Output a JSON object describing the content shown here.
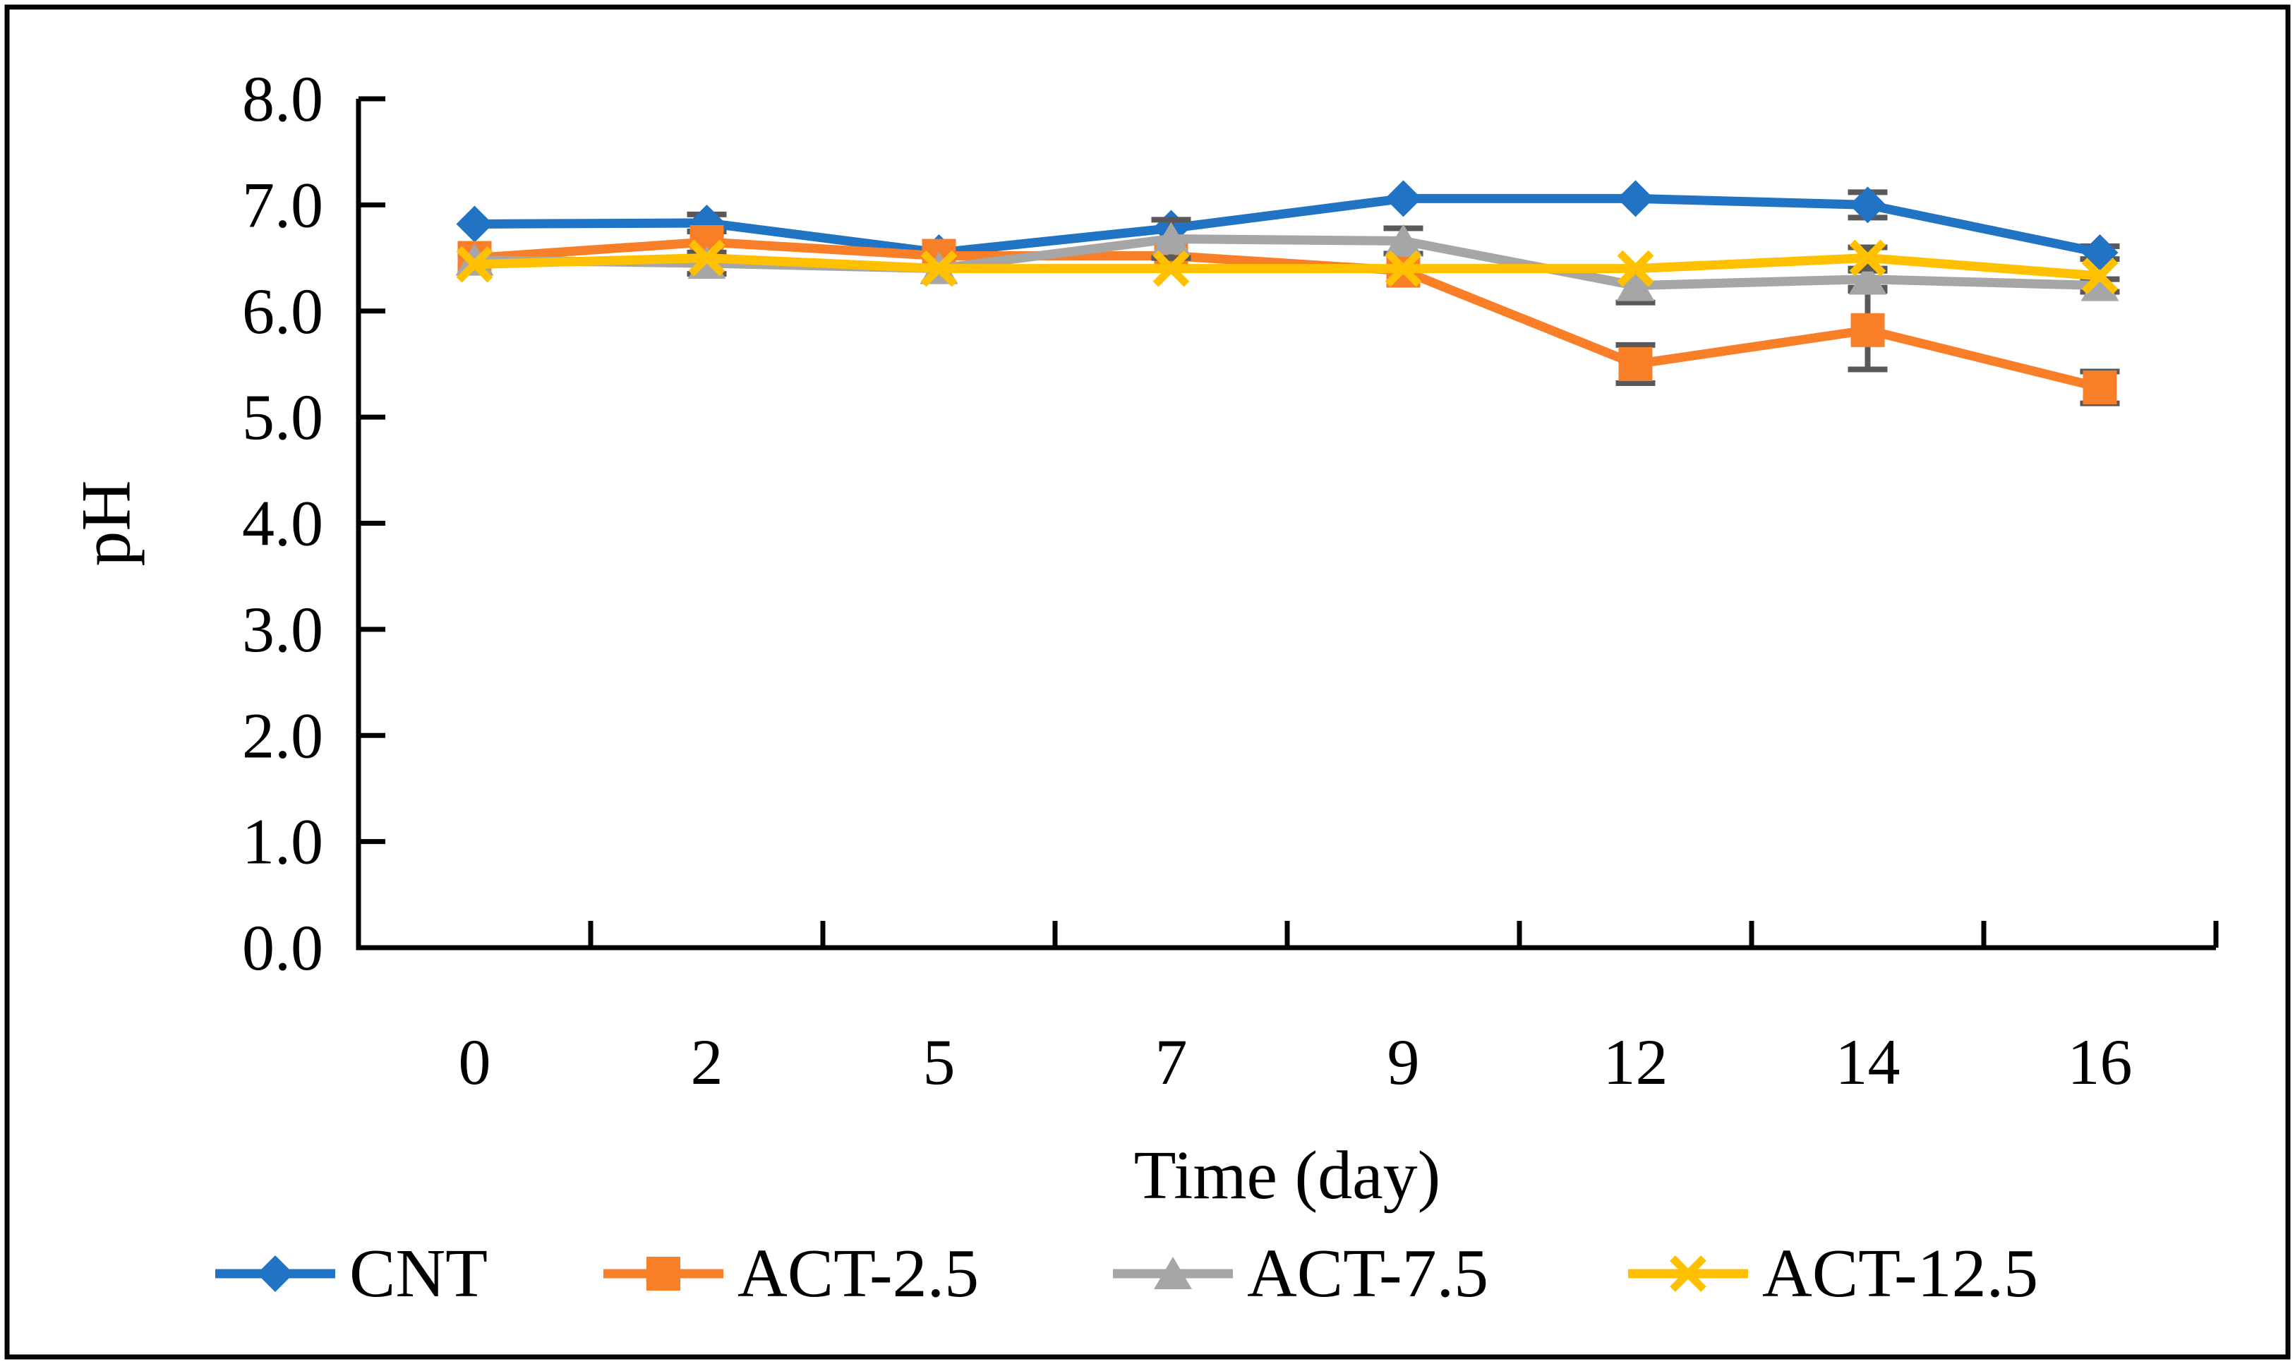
{
  "figure": {
    "background": "#FFFFFF",
    "border_color": "#000000",
    "error_bar_color": "#595959",
    "axis_color": "#000000"
  },
  "chart_data": {
    "type": "line",
    "title": "",
    "xlabel": "Time (day)",
    "ylabel": "pH",
    "categories": [
      "0",
      "2",
      "5",
      "7",
      "9",
      "12",
      "14",
      "16"
    ],
    "x_tick_labels": [
      "0",
      "2",
      "5",
      "7",
      "9",
      "12",
      "14",
      "16"
    ],
    "y_tick_labels": [
      "0.0",
      "1.0",
      "2.0",
      "3.0",
      "4.0",
      "5.0",
      "6.0",
      "7.0",
      "8.0"
    ],
    "ylim": [
      0.0,
      8.0
    ],
    "y_tick_step": 1.0,
    "grid": false,
    "legend_position": "bottom",
    "series": [
      {
        "name": "CNT",
        "color": "#2173C4",
        "marker": "diamond",
        "values": [
          6.82,
          6.83,
          6.55,
          6.78,
          7.06,
          7.06,
          7.0,
          6.55
        ],
        "errors": [
          0,
          0.08,
          0,
          0,
          0,
          0,
          0.12,
          0.06
        ]
      },
      {
        "name": "ACT-2.5",
        "color": "#F97E28",
        "marker": "square",
        "values": [
          6.5,
          6.65,
          6.52,
          6.52,
          6.38,
          5.5,
          5.82,
          5.28
        ],
        "errors": [
          0,
          0,
          0,
          0,
          0,
          0.18,
          0.37,
          0.15
        ]
      },
      {
        "name": "ACT-7.5",
        "color": "#A6A6A6",
        "marker": "triangle",
        "values": [
          6.48,
          6.45,
          6.4,
          6.68,
          6.66,
          6.24,
          6.3,
          6.24
        ],
        "errors": [
          0,
          0.1,
          0,
          0.18,
          0.12,
          0.16,
          0.08,
          0.06
        ]
      },
      {
        "name": "ACT-12.5",
        "color": "#FFC000",
        "marker": "x",
        "values": [
          6.44,
          6.5,
          6.4,
          6.4,
          6.4,
          6.4,
          6.5,
          6.33
        ],
        "errors": [
          0,
          0,
          0,
          0,
          0,
          0,
          0.1,
          0
        ]
      }
    ]
  }
}
